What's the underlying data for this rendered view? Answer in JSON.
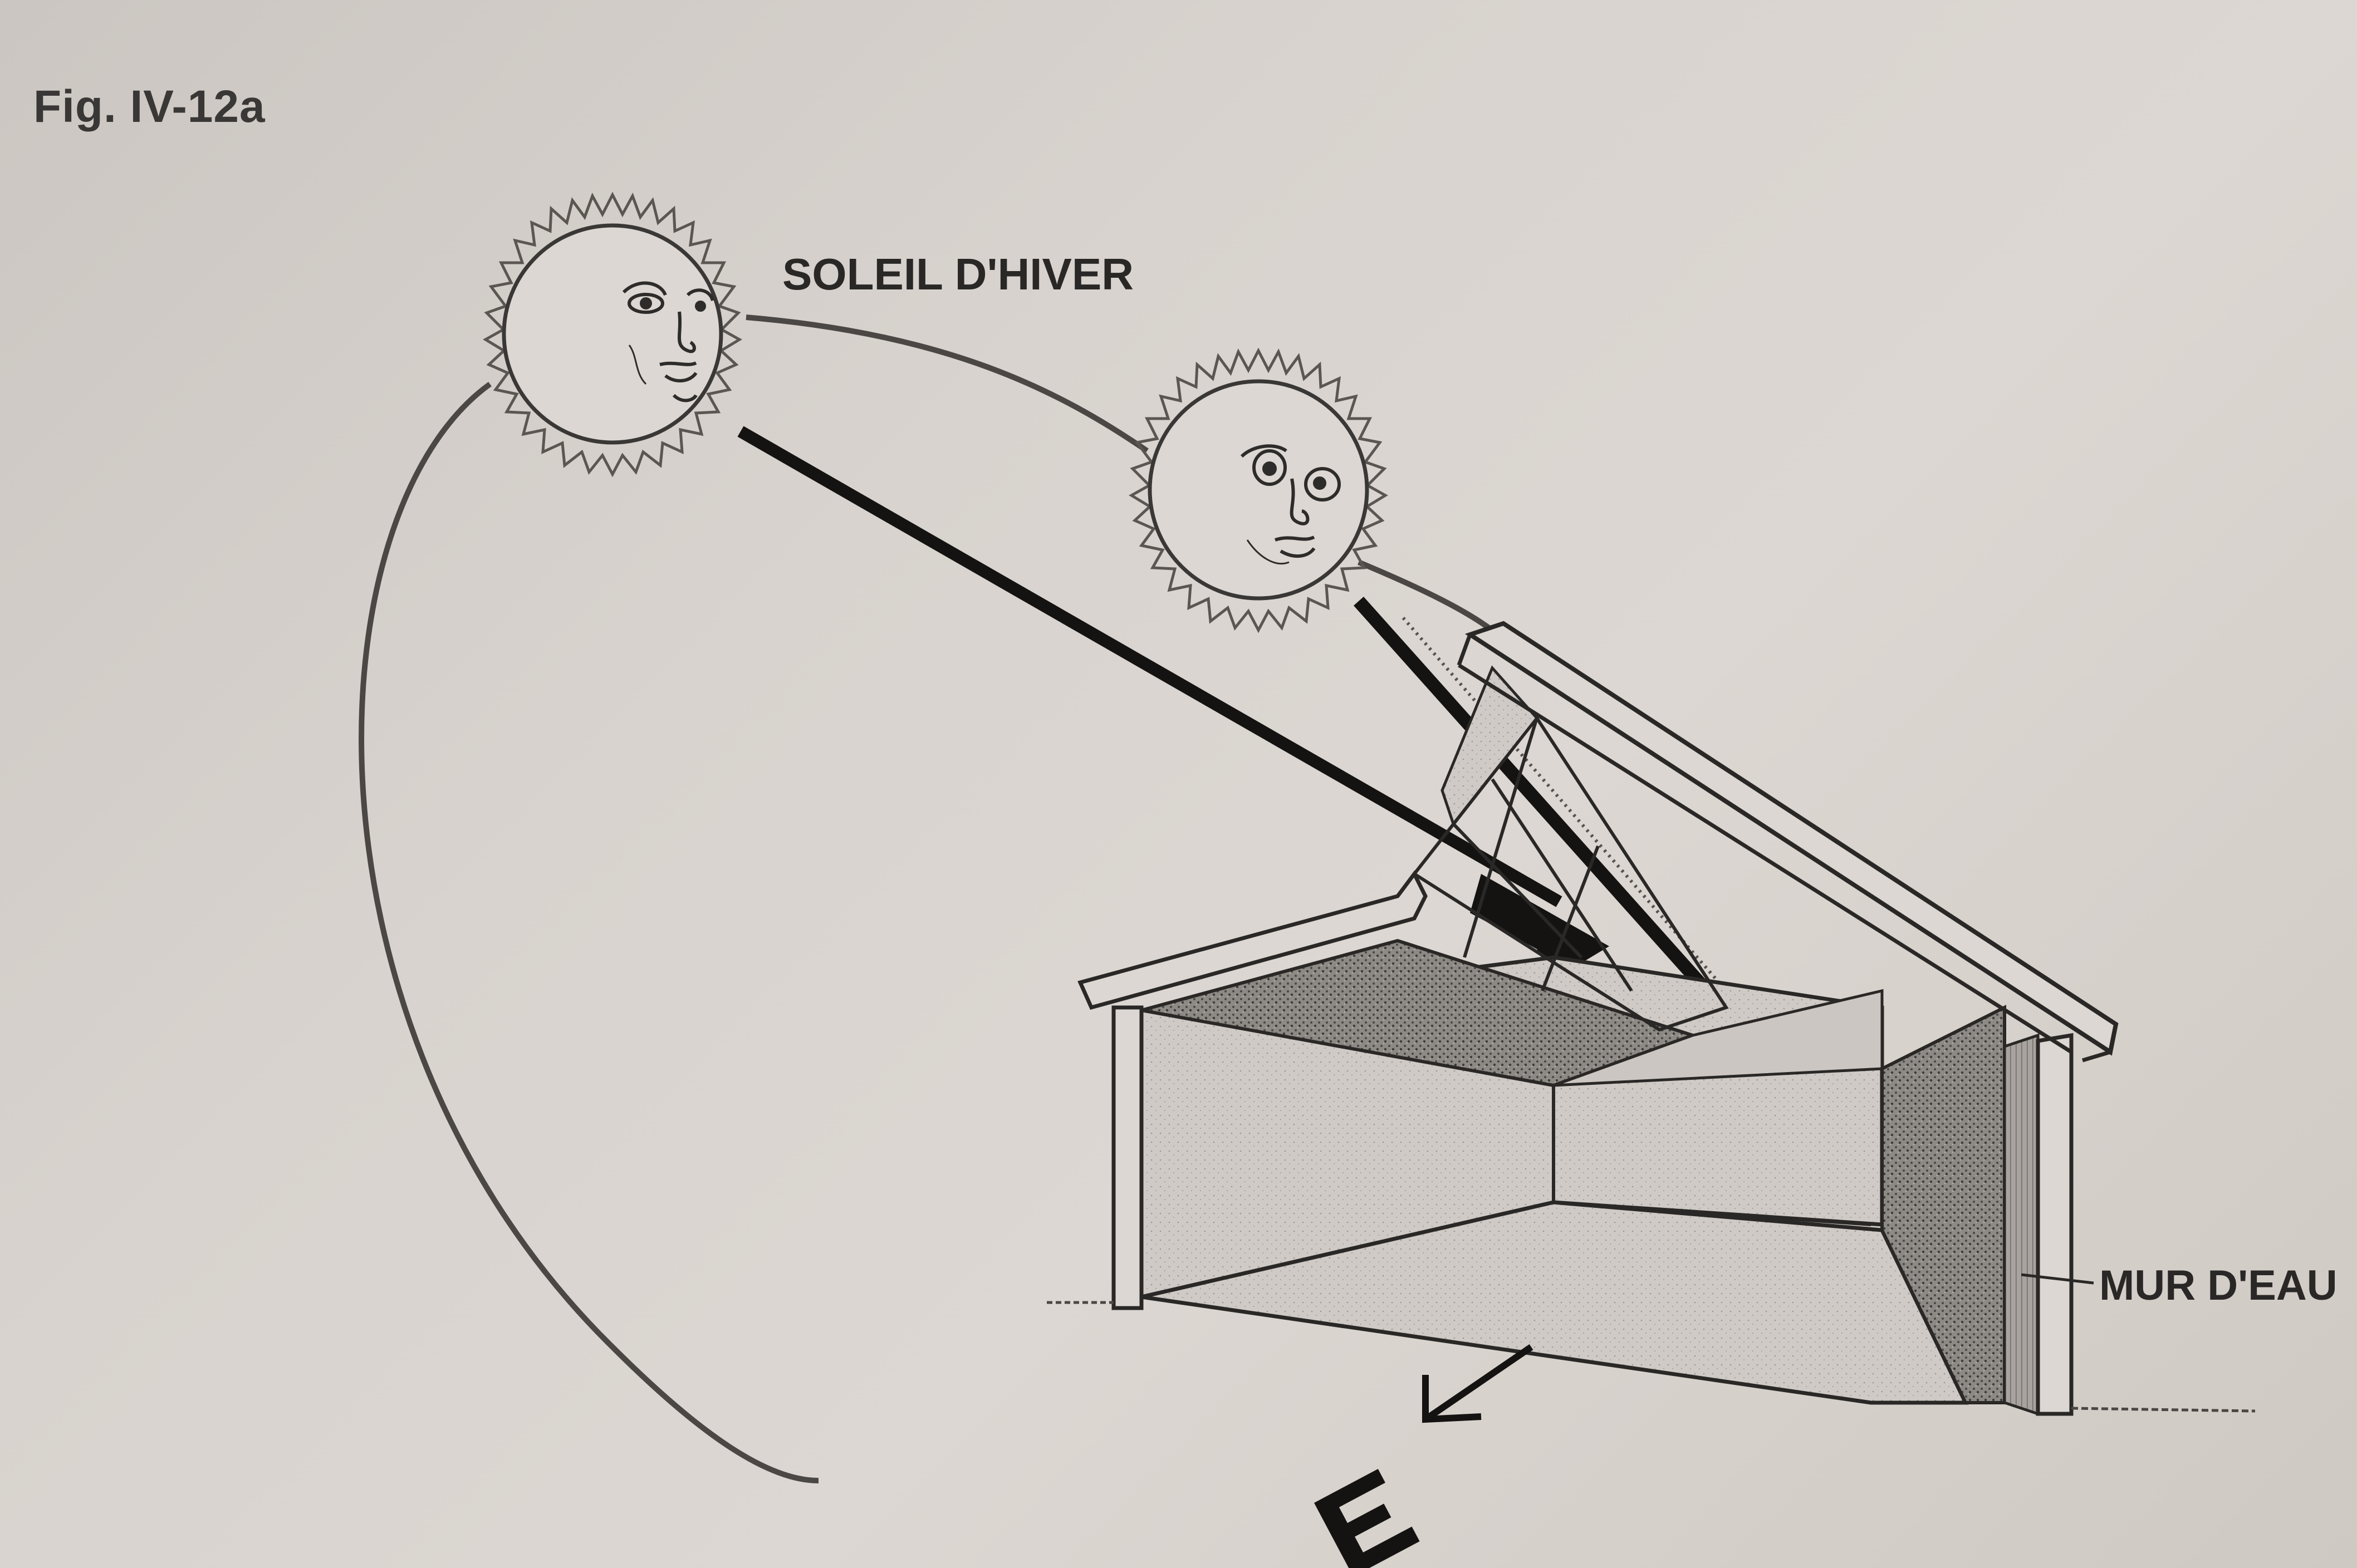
{
  "figure": {
    "label": "Fig. IV-12a"
  },
  "labels": {
    "winter_sun": "SOLEIL D'HIVER",
    "water_wall": "MUR D'EAU",
    "east": "E"
  },
  "colors": {
    "paper": "#d8d3ce",
    "ink": "#2a2826"
  }
}
